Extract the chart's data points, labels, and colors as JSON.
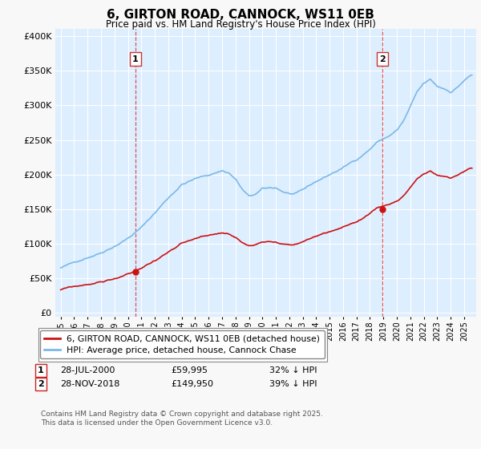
{
  "title": "6, GIRTON ROAD, CANNOCK, WS11 0EB",
  "subtitle": "Price paid vs. HM Land Registry's House Price Index (HPI)",
  "hpi_label": "HPI: Average price, detached house, Cannock Chase",
  "price_label": "6, GIRTON ROAD, CANNOCK, WS11 0EB (detached house)",
  "hpi_color": "#7ab8e8",
  "price_color": "#cc1111",
  "vline_color": "#dd4444",
  "background_color": "#ddeeff",
  "grid_color": "#ffffff",
  "annotation1": {
    "label": "1",
    "date_x": 2000.55,
    "price": 59995
  },
  "annotation2": {
    "label": "2",
    "date_x": 2018.9,
    "price": 149950
  },
  "ylabel_ticks": [
    "£0",
    "£50K",
    "£100K",
    "£150K",
    "£200K",
    "£250K",
    "£300K",
    "£350K",
    "£400K"
  ],
  "ytick_values": [
    0,
    50000,
    100000,
    150000,
    200000,
    250000,
    300000,
    350000,
    400000
  ],
  "ylim": [
    -5000,
    410000
  ],
  "xlim": [
    1994.6,
    2025.9
  ],
  "footer": "Contains HM Land Registry data © Crown copyright and database right 2025.\nThis data is licensed under the Open Government Licence v3.0.",
  "ann1_date": "28-JUL-2000",
  "ann1_amount": "£59,995",
  "ann1_pct": "32% ↓ HPI",
  "ann2_date": "28-NOV-2018",
  "ann2_amount": "£149,950",
  "ann2_pct": "39% ↓ HPI"
}
